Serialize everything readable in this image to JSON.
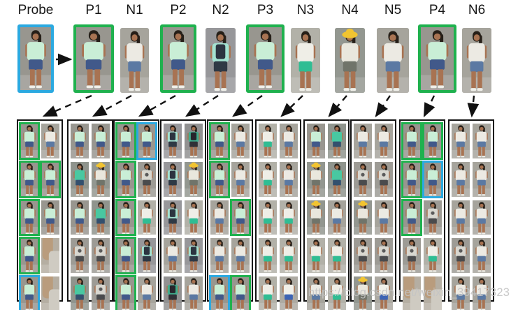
{
  "figure": {
    "description": "Person re-identification probe with ranked gallery lists",
    "top_row": [
      {
        "label": "Probe",
        "border": "blue",
        "variant": 0
      },
      {
        "label": "P1",
        "border": "green",
        "variant": 0
      },
      {
        "label": "N1",
        "border": "none",
        "variant": 1
      },
      {
        "label": "P2",
        "border": "green",
        "variant": 0
      },
      {
        "label": "N2",
        "border": "none",
        "variant": 6
      },
      {
        "label": "P3",
        "border": "green",
        "variant": 0
      },
      {
        "label": "N3",
        "border": "none",
        "variant": 3
      },
      {
        "label": "N4",
        "border": "none",
        "variant": 5
      },
      {
        "label": "N5",
        "border": "none",
        "variant": 1
      },
      {
        "label": "P4",
        "border": "green",
        "variant": 0
      },
      {
        "label": "N6",
        "border": "none",
        "variant": 1
      }
    ],
    "columns": [
      {
        "source": "P1",
        "cells": [
          {
            "border": "green",
            "variant": 0
          },
          {
            "border": "none",
            "variant": 1
          },
          {
            "border": "green",
            "variant": 0
          },
          {
            "border": "green",
            "variant": 0
          },
          {
            "border": "green",
            "variant": 0
          },
          {
            "border": "none",
            "variant": 0
          },
          {
            "border": "green",
            "variant": 0
          },
          {
            "border": "none",
            "variant": 7
          },
          {
            "border": "blue",
            "variant": 0
          },
          {
            "border": "none",
            "variant": 7
          }
        ]
      },
      {
        "source": "N1",
        "cells": [
          {
            "border": "none",
            "variant": 0
          },
          {
            "border": "none",
            "variant": 0
          },
          {
            "border": "none",
            "variant": 2
          },
          {
            "border": "none",
            "variant": 5
          },
          {
            "border": "none",
            "variant": 0
          },
          {
            "border": "none",
            "variant": 2
          },
          {
            "border": "none",
            "variant": 4
          },
          {
            "border": "none",
            "variant": 4
          },
          {
            "border": "none",
            "variant": 2
          },
          {
            "border": "none",
            "variant": 4
          }
        ]
      },
      {
        "source": "P2",
        "cells": [
          {
            "border": "green",
            "variant": 0
          },
          {
            "border": "blue",
            "variant": 0
          },
          {
            "border": "green",
            "variant": 0
          },
          {
            "border": "none",
            "variant": 4
          },
          {
            "border": "green",
            "variant": 0
          },
          {
            "border": "none",
            "variant": 3
          },
          {
            "border": "green",
            "variant": 0
          },
          {
            "border": "none",
            "variant": 6
          },
          {
            "border": "green",
            "variant": 0
          },
          {
            "border": "none",
            "variant": 1
          }
        ]
      },
      {
        "source": "N2",
        "cells": [
          {
            "border": "none",
            "variant": 6
          },
          {
            "border": "none",
            "variant": 9
          },
          {
            "border": "none",
            "variant": 6
          },
          {
            "border": "none",
            "variant": 5
          },
          {
            "border": "none",
            "variant": 6
          },
          {
            "border": "none",
            "variant": 3
          },
          {
            "border": "none",
            "variant": 1
          },
          {
            "border": "none",
            "variant": 6
          },
          {
            "border": "none",
            "variant": 9
          },
          {
            "border": "none",
            "variant": 1
          }
        ]
      },
      {
        "source": "P3",
        "cells": [
          {
            "border": "green",
            "variant": 0
          },
          {
            "border": "none",
            "variant": 1
          },
          {
            "border": "green",
            "variant": 0
          },
          {
            "border": "none",
            "variant": 1
          },
          {
            "border": "none",
            "variant": 1
          },
          {
            "border": "green",
            "variant": 0
          },
          {
            "border": "none",
            "variant": 1
          },
          {
            "border": "none",
            "variant": 1
          },
          {
            "border": "blue",
            "variant": 0
          },
          {
            "border": "green",
            "variant": 0
          }
        ]
      },
      {
        "source": "N3",
        "cells": [
          {
            "border": "none",
            "variant": 3
          },
          {
            "border": "none",
            "variant": 1
          },
          {
            "border": "none",
            "variant": 3
          },
          {
            "border": "none",
            "variant": 1
          },
          {
            "border": "none",
            "variant": 3
          },
          {
            "border": "none",
            "variant": 3
          },
          {
            "border": "none",
            "variant": 3
          },
          {
            "border": "none",
            "variant": 3
          },
          {
            "border": "none",
            "variant": 3
          },
          {
            "border": "none",
            "variant": 8
          }
        ]
      },
      {
        "source": "N4",
        "cells": [
          {
            "border": "none",
            "variant": 0
          },
          {
            "border": "none",
            "variant": 2
          },
          {
            "border": "none",
            "variant": 5
          },
          {
            "border": "none",
            "variant": 2
          },
          {
            "border": "none",
            "variant": 5
          },
          {
            "border": "none",
            "variant": 1
          },
          {
            "border": "none",
            "variant": 3
          },
          {
            "border": "none",
            "variant": 3
          },
          {
            "border": "none",
            "variant": 1
          },
          {
            "border": "none",
            "variant": 3
          }
        ]
      },
      {
        "source": "N5",
        "cells": [
          {
            "border": "none",
            "variant": 1
          },
          {
            "border": "none",
            "variant": 1
          },
          {
            "border": "none",
            "variant": 4
          },
          {
            "border": "none",
            "variant": 4
          },
          {
            "border": "none",
            "variant": 5
          },
          {
            "border": "none",
            "variant": 1
          },
          {
            "border": "none",
            "variant": 4
          },
          {
            "border": "none",
            "variant": 4
          },
          {
            "border": "none",
            "variant": 5
          },
          {
            "border": "none",
            "variant": 8
          }
        ]
      },
      {
        "source": "P4",
        "cells": [
          {
            "border": "green",
            "variant": 0
          },
          {
            "border": "green",
            "variant": 0
          },
          {
            "border": "green",
            "variant": 0
          },
          {
            "border": "blue",
            "variant": 0
          },
          {
            "border": "green",
            "variant": 0
          },
          {
            "border": "none",
            "variant": 4
          },
          {
            "border": "none",
            "variant": 4
          },
          {
            "border": "none",
            "variant": 3
          },
          {
            "border": "none",
            "variant": 7
          },
          {
            "border": "none",
            "variant": 7
          }
        ]
      },
      {
        "source": "N6",
        "cells": [
          {
            "border": "none",
            "variant": 1
          },
          {
            "border": "none",
            "variant": 1
          },
          {
            "border": "none",
            "variant": 1
          },
          {
            "border": "none",
            "variant": 1
          },
          {
            "border": "none",
            "variant": 1
          },
          {
            "border": "none",
            "variant": 1
          },
          {
            "border": "none",
            "variant": 4
          },
          {
            "border": "none",
            "variant": 1
          },
          {
            "border": "none",
            "variant": 1
          },
          {
            "border": "none",
            "variant": 1
          }
        ]
      }
    ],
    "colors": {
      "probe_highlight": "#2ba9e0",
      "positive_highlight": "#1fb14e",
      "arrow": "#111111",
      "frame": "#121212"
    }
  },
  "thumb_palette": [
    {
      "id": "mint-tee-denim",
      "bg": "#98968f",
      "shirt": "#c9eed6",
      "pants": "#41598a"
    },
    {
      "id": "white-tee-denim",
      "bg": "#a6a49c",
      "shirt": "#eceae3",
      "pants": "#5b79a3"
    },
    {
      "id": "teal-tee-dark-shorts",
      "bg": "#8f948d",
      "shirt": "#49c8a1",
      "pants": "#33506e"
    },
    {
      "id": "white-tee-teal-shorts",
      "bg": "#b2b1a8",
      "shirt": "#efeee7",
      "pants": "#2fbd93"
    },
    {
      "id": "gray-graphic-tee",
      "bg": "#9d9b95",
      "shirt": "#d8d7d0",
      "pants": "#4a4b4d",
      "print": "#5a5a5a"
    },
    {
      "id": "yellow-hat",
      "bg": "#939790",
      "shirt": "#e9e7dd",
      "pants": "#70746a",
      "hat": "#f1c431"
    },
    {
      "id": "mint-jacket-backpack",
      "bg": "#97979a",
      "shirt": "#a4e2d1",
      "pants": "#2f3945",
      "pack": "#2c3440"
    },
    {
      "id": "closeup-blur",
      "bg": "#b5aea2"
    },
    {
      "id": "white-tee-blue-shorts",
      "bg": "#adaaa2",
      "shirt": "#f1f0e9",
      "pants": "#3c63b4"
    },
    {
      "id": "dark-backpack-teal",
      "bg": "#919191",
      "shirt": "#41ad8d",
      "pants": "#303036",
      "pack": "#26262c"
    }
  ],
  "watermark": {
    "text": "https://blog.csdn.net/weixin_39417323"
  }
}
